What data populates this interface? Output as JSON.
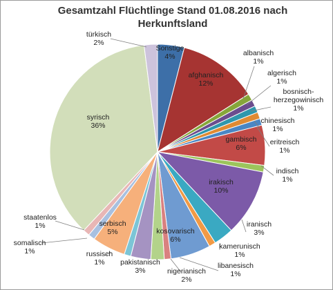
{
  "chart_data": {
    "type": "pie",
    "title_line1": "Gesamtzahl Flüchtlinge Stand 01.08.2016 nach",
    "title_line2": "Herkunftsland",
    "slices": [
      {
        "name": "Sonstige",
        "label": "4%",
        "value": 4,
        "color": "#3d6fa8"
      },
      {
        "name": "afghanisch",
        "label": "12%",
        "value": 12,
        "color": "#a63432"
      },
      {
        "name": "albanisch",
        "label": "1%",
        "value": 1,
        "color": "#86a63a"
      },
      {
        "name": "algerisch",
        "label": "1%",
        "value": 1,
        "color": "#6b4c8e"
      },
      {
        "name": "bosnisch-herzegowinisch",
        "label": "1%",
        "value": 1,
        "color": "#2f97ad"
      },
      {
        "name": "chinesisch",
        "label": "1%",
        "value": 1,
        "color": "#e08a33"
      },
      {
        "name": "eritreisch",
        "label": "1%",
        "value": 1,
        "color": "#4a86c4"
      },
      {
        "name": "gambisch",
        "label": "6%",
        "value": 6,
        "color": "#c24a47"
      },
      {
        "name": "indisch",
        "label": "1%",
        "value": 1,
        "color": "#9cc45c"
      },
      {
        "name": "irakisch",
        "label": "10%",
        "value": 10,
        "color": "#7c5aa8"
      },
      {
        "name": "iranisch",
        "label": "3%",
        "value": 3,
        "color": "#3aa9c2"
      },
      {
        "name": "kamerunisch",
        "label": "1%",
        "value": 1,
        "color": "#f19a45"
      },
      {
        "name": "kosovarisch",
        "label": "6%",
        "value": 6,
        "color": "#6f9bd1"
      },
      {
        "name": "libanesisch",
        "label": "1%",
        "value": 1,
        "color": "#d98180"
      },
      {
        "name": "nigerianisch",
        "label": "2%",
        "value": 2,
        "color": "#b3d38a"
      },
      {
        "name": "pakistanisch",
        "label": "3%",
        "value": 3,
        "color": "#a593c2"
      },
      {
        "name": "russisch",
        "label": "1%",
        "value": 1,
        "color": "#7cc5d6"
      },
      {
        "name": "serbisch",
        "label": "5%",
        "value": 5,
        "color": "#f6b07b"
      },
      {
        "name": "somalisch",
        "label": "1%",
        "value": 1,
        "color": "#a8c0e0"
      },
      {
        "name": "staatenlos",
        "label": "1%",
        "value": 1,
        "color": "#e8b6b5"
      },
      {
        "name": "syrisch",
        "label": "36%",
        "value": 36,
        "color": "#d2deba"
      },
      {
        "name": "türkisch",
        "label": "2%",
        "value": 2,
        "color": "#cdc3dc"
      }
    ]
  }
}
